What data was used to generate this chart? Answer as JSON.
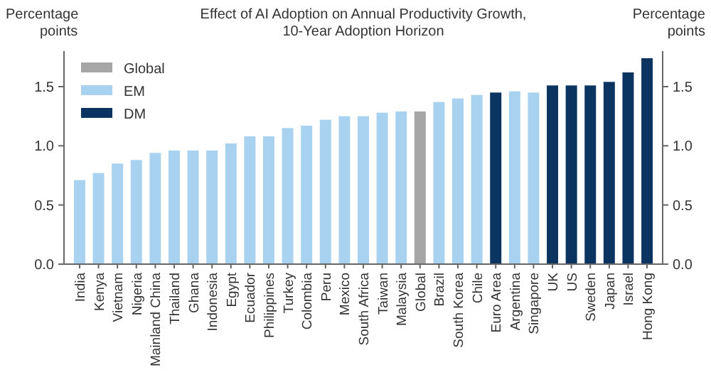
{
  "chart_data": {
    "type": "bar",
    "title": "Effect of AI Adoption on Annual Productivity Growth, 10-Year Adoption Horizon",
    "ylabel": "Percentage points",
    "y2label": "Percentage points",
    "categories": [
      "India",
      "Kenya",
      "Vietnam",
      "Nigeria",
      "Mainland China",
      "Thailand",
      "Ghana",
      "Indonesia",
      "Egypt",
      "Ecuador",
      "Philippines",
      "Turkey",
      "Colombia",
      "Peru",
      "Mexico",
      "South Africa",
      "Taiwan",
      "Malaysia",
      "Global",
      "Brazil",
      "South Korea",
      "Chile",
      "Euro Area",
      "Argentina",
      "Singapore",
      "UK",
      "US",
      "Sweden",
      "Japan",
      "Israel",
      "Hong Kong"
    ],
    "stacked": true,
    "series": [
      {
        "name": "Global",
        "color": "#a6a6a6",
        "values": [
          null,
          null,
          null,
          null,
          null,
          null,
          null,
          null,
          null,
          null,
          null,
          null,
          null,
          null,
          null,
          null,
          null,
          null,
          1.29,
          null,
          null,
          null,
          null,
          null,
          null,
          null,
          null,
          null,
          null,
          null,
          null
        ]
      },
      {
        "name": "EM",
        "color": "#a9d2f0",
        "values": [
          0.71,
          0.77,
          0.85,
          0.88,
          0.94,
          0.96,
          0.96,
          0.96,
          1.02,
          1.08,
          1.08,
          1.15,
          1.17,
          1.22,
          1.25,
          1.25,
          1.28,
          1.29,
          null,
          1.37,
          1.4,
          1.43,
          null,
          1.46,
          1.45,
          null,
          null,
          null,
          null,
          null,
          null
        ]
      },
      {
        "name": "DM",
        "color": "#0b3560",
        "values": [
          null,
          null,
          null,
          null,
          null,
          null,
          null,
          null,
          null,
          null,
          null,
          null,
          null,
          null,
          null,
          null,
          null,
          null,
          null,
          null,
          null,
          null,
          1.45,
          null,
          null,
          1.51,
          1.51,
          1.51,
          1.54,
          1.62,
          1.74
        ]
      }
    ],
    "ylim": [
      0,
      1.8
    ],
    "yticks": [
      {
        "value": 0,
        "label": "0.0"
      },
      {
        "value": 0.5,
        "label": "0.5"
      },
      {
        "value": 1,
        "label": "1.0"
      },
      {
        "value": 1.5,
        "label": "1.5"
      }
    ],
    "y2lim": [
      0,
      1.8
    ],
    "y2ticks": [
      {
        "value": 0,
        "label": "0.0"
      },
      {
        "value": 0.5,
        "label": "0.5"
      },
      {
        "value": 1,
        "label": "1.0"
      },
      {
        "value": 1.5,
        "label": "1.5"
      }
    ],
    "legend": "top left",
    "grid": false
  }
}
